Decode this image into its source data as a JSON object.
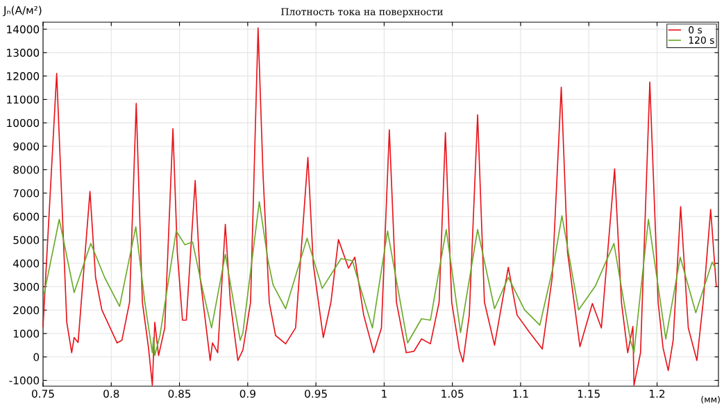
{
  "chart_data": {
    "type": "line",
    "title": "Плотность тока на поверхности",
    "xlabel": "(мм)",
    "ylabel": "Jₙ(A/м²)",
    "xlim": [
      0.75,
      1.245
    ],
    "xticks": [
      {
        "value": 0.75,
        "label": "0.75"
      },
      {
        "value": 0.8,
        "label": "0.8"
      },
      {
        "value": 0.85,
        "label": "0.85"
      },
      {
        "value": 0.9,
        "label": "0.9"
      },
      {
        "value": 0.95,
        "label": "0.95"
      },
      {
        "value": 1,
        "label": "1"
      },
      {
        "value": 1.05,
        "label": "1.05"
      },
      {
        "value": 1.1,
        "label": "1.1"
      },
      {
        "value": 1.15,
        "label": "1.15"
      },
      {
        "value": 1.2,
        "label": "1.2"
      }
    ],
    "ylim": [
      -1250,
      14300
    ],
    "yticks": [
      -1000,
      0,
      1000,
      2000,
      3000,
      4000,
      5000,
      6000,
      7000,
      8000,
      9000,
      10000,
      11000,
      12000,
      13000,
      14000
    ],
    "grid": true,
    "legend": "top right",
    "marker": "none",
    "line_style": "solid",
    "series": [
      {
        "name": "0 s",
        "color": "#e8141b",
        "x": [
          0.75,
          0.76,
          0.7674,
          0.771,
          0.7728,
          0.7757,
          0.7844,
          0.7885,
          0.7931,
          0.8043,
          0.8078,
          0.8134,
          0.8183,
          0.8228,
          0.8273,
          0.8301,
          0.8319,
          0.8347,
          0.8392,
          0.8452,
          0.8484,
          0.8522,
          0.855,
          0.8615,
          0.8651,
          0.8725,
          0.8742,
          0.878,
          0.8836,
          0.8873,
          0.8928,
          0.8965,
          0.9021,
          0.9076,
          0.9113,
          0.9158,
          0.9204,
          0.9278,
          0.9351,
          0.9441,
          0.9481,
          0.9554,
          0.961,
          0.9665,
          0.9739,
          0.9785,
          0.985,
          0.9924,
          0.998,
          1.0038,
          1.009,
          1.0162,
          1.0218,
          1.0274,
          1.0339,
          1.0403,
          1.0449,
          1.0495,
          1.0551,
          1.0578,
          1.0624,
          1.0685,
          1.0735,
          1.0809,
          1.091,
          1.0974,
          1.1067,
          1.1159,
          1.1232,
          1.1298,
          1.1344,
          1.1435,
          1.1526,
          1.1592,
          1.1689,
          1.1739,
          1.1785,
          1.1823,
          1.1831,
          1.1879,
          1.1947,
          1.2008,
          1.2044,
          1.2082,
          1.2118,
          1.2173,
          1.2229,
          1.2292,
          1.2338,
          1.2393,
          1.2434
        ],
        "values": [
          1300,
          12110,
          1480,
          180,
          830,
          620,
          7070,
          3400,
          2010,
          600,
          710,
          2340,
          10830,
          2340,
          390,
          -1210,
          1480,
          60,
          1240,
          9750,
          4470,
          1570,
          1570,
          7540,
          3400,
          -150,
          600,
          180,
          5660,
          2340,
          -150,
          300,
          2340,
          14050,
          7700,
          2340,
          920,
          560,
          1240,
          8520,
          3940,
          830,
          2340,
          5010,
          3790,
          4260,
          1790,
          180,
          1240,
          9700,
          2340,
          180,
          240,
          770,
          560,
          2340,
          9580,
          2340,
          300,
          -210,
          1790,
          10340,
          2340,
          500,
          3830,
          1790,
          1040,
          340,
          3400,
          11520,
          4470,
          440,
          2280,
          1240,
          8030,
          2340,
          180,
          1300,
          -1210,
          180,
          11740,
          2340,
          390,
          -580,
          710,
          6420,
          1240,
          -150,
          2340,
          6300,
          3020
        ]
      },
      {
        "name": "120 s",
        "color": "#6aaa2a",
        "x": [
          0.7508,
          0.7619,
          0.7728,
          0.785,
          0.7951,
          0.8061,
          0.818,
          0.8246,
          0.8301,
          0.831,
          0.8319,
          0.8357,
          0.8476,
          0.854,
          0.8596,
          0.867,
          0.8735,
          0.8836,
          0.8945,
          0.8965,
          0.9085,
          0.9148,
          0.9186,
          0.9278,
          0.9435,
          0.9546,
          0.9684,
          0.9767,
          0.9914,
          1.0025,
          1.0172,
          1.0274,
          1.0339,
          1.0455,
          1.056,
          1.0685,
          1.0809,
          1.091,
          1.1029,
          1.1141,
          1.1242,
          1.1303,
          1.1425,
          1.1547,
          1.1684,
          1.1805,
          1.1831,
          1.1937,
          1.2064,
          1.217,
          1.2284,
          1.2404,
          1.2424
        ],
        "values": [
          2700,
          5880,
          2750,
          4850,
          3400,
          2160,
          5560,
          2340,
          180,
          830,
          60,
          920,
          5380,
          4790,
          4910,
          2870,
          1240,
          4380,
          710,
          1040,
          6630,
          4150,
          3080,
          2060,
          5070,
          2930,
          4200,
          4110,
          1240,
          5380,
          600,
          1630,
          1570,
          5440,
          1040,
          5440,
          2060,
          3400,
          2010,
          1360,
          3940,
          6030,
          2010,
          3020,
          4850,
          710,
          180,
          5880,
          770,
          4260,
          1890,
          4050,
          3830
        ]
      }
    ]
  }
}
